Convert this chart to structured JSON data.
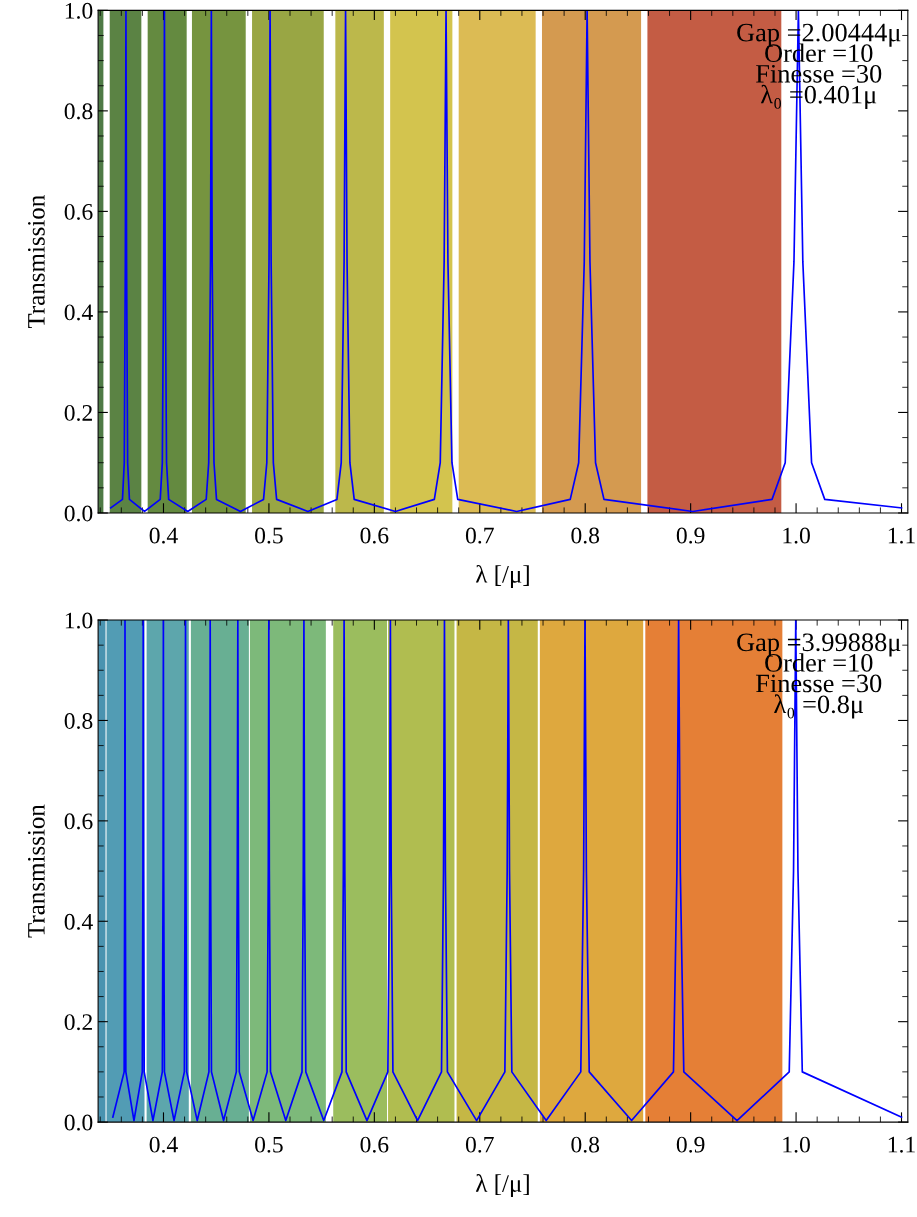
{
  "chart_data": [
    {
      "type": "line",
      "xlabel": "λ [/μ]",
      "ylabel": "Transmission",
      "xlim": [
        0.338,
        1.106
      ],
      "ylim": [
        0,
        1
      ],
      "xticks": [
        {
          "value": 0.4,
          "label": "0.4"
        },
        {
          "value": 0.5,
          "label": "0.5"
        },
        {
          "value": 0.6,
          "label": "0.6"
        },
        {
          "value": 0.7,
          "label": "0.7"
        },
        {
          "value": 0.8,
          "label": "0.8"
        },
        {
          "value": 0.9,
          "label": "0.9"
        },
        {
          "value": 1.0,
          "label": "1.0"
        },
        {
          "value": 1.1,
          "label": "1.1"
        }
      ],
      "yticks": [
        {
          "value": 0,
          "label": "0.0"
        },
        {
          "value": 0.2,
          "label": "0.2"
        },
        {
          "value": 0.4,
          "label": "0.4"
        },
        {
          "value": 0.6,
          "label": "0.6"
        },
        {
          "value": 0.8,
          "label": "0.8"
        },
        {
          "value": 1.0,
          "label": "1.0"
        }
      ],
      "annotations": [
        "Gap =2.00444μ",
        "Order =10",
        "Finesse =30",
        "λ₀ =0.401μ"
      ],
      "bands": [
        {
          "axis": "x",
          "from": 0.338,
          "to": 0.343,
          "color": "#4e7a45"
        },
        {
          "axis": "x",
          "from": 0.349,
          "to": 0.379,
          "color": "#5b8344"
        },
        {
          "axis": "x",
          "from": 0.385,
          "to": 0.422,
          "color": "#648a40"
        },
        {
          "axis": "x",
          "from": 0.427,
          "to": 0.478,
          "color": "#76943f"
        },
        {
          "axis": "x",
          "from": 0.484,
          "to": 0.552,
          "color": "#99a644"
        },
        {
          "axis": "x",
          "from": 0.563,
          "to": 0.609,
          "color": "#bcb84b"
        },
        {
          "axis": "x",
          "from": 0.615,
          "to": 0.674,
          "color": "#d3c44e"
        },
        {
          "axis": "x",
          "from": 0.68,
          "to": 0.753,
          "color": "#dcbb54"
        },
        {
          "axis": "x",
          "from": 0.759,
          "to": 0.853,
          "color": "#d49a50"
        },
        {
          "axis": "x",
          "from": 0.859,
          "to": 0.986,
          "color": "#c45c44"
        }
      ],
      "series": [
        {
          "color": "#0000ff",
          "line_style": "solid",
          "x": [
            0.35,
            0.3611,
            0.3628,
            0.3638,
            0.3644,
            0.365,
            0.366,
            0.3677,
            0.382,
            0.3969,
            0.3989,
            0.4002,
            0.4009,
            0.4016,
            0.4029,
            0.4049,
            0.423,
            0.4405,
            0.4429,
            0.4446,
            0.4454,
            0.4462,
            0.4479,
            0.4503,
            0.473,
            0.4949,
            0.498,
            0.5001,
            0.5011,
            0.5021,
            0.5042,
            0.5073,
            0.537,
            0.5645,
            0.5686,
            0.5713,
            0.5727,
            0.5741,
            0.5768,
            0.5809,
            0.62,
            0.6569,
            0.6625,
            0.6662,
            0.668,
            0.6698,
            0.6736,
            0.6791,
            0.735,
            0.7858,
            0.7938,
            0.7991,
            0.8018,
            0.8045,
            0.8098,
            0.8178,
            0.902,
            0.9772,
            0.9897,
            0.998,
            1.0022,
            1.0064,
            1.0147,
            1.0272,
            1.1
          ],
          "values": [
            0.01,
            0.027,
            0.1,
            0.5,
            1.0,
            0.5,
            0.1,
            0.027,
            0.003,
            0.027,
            0.1,
            0.5,
            1.0,
            0.5,
            0.1,
            0.027,
            0.003,
            0.027,
            0.1,
            0.5,
            1.0,
            0.5,
            0.1,
            0.027,
            0.003,
            0.027,
            0.1,
            0.5,
            1.0,
            0.5,
            0.1,
            0.027,
            0.003,
            0.027,
            0.1,
            0.5,
            1.0,
            0.5,
            0.1,
            0.027,
            0.003,
            0.027,
            0.1,
            0.5,
            1.0,
            0.5,
            0.1,
            0.027,
            0.003,
            0.027,
            0.1,
            0.5,
            1.0,
            0.5,
            0.1,
            0.027,
            0.003,
            0.027,
            0.1,
            0.5,
            1.0,
            0.5,
            0.1,
            0.027,
            0.01
          ]
        }
      ]
    },
    {
      "type": "line",
      "xlabel": "λ [/μ]",
      "ylabel": "Transmission",
      "xlim": [
        0.338,
        1.106
      ],
      "ylim": [
        0,
        1
      ],
      "xticks": [
        {
          "value": 0.4,
          "label": "0.4"
        },
        {
          "value": 0.5,
          "label": "0.5"
        },
        {
          "value": 0.6,
          "label": "0.6"
        },
        {
          "value": 0.7,
          "label": "0.7"
        },
        {
          "value": 0.8,
          "label": "0.8"
        },
        {
          "value": 0.9,
          "label": "0.9"
        },
        {
          "value": 1.0,
          "label": "1.0"
        },
        {
          "value": 1.1,
          "label": "1.1"
        }
      ],
      "yticks": [
        {
          "value": 0,
          "label": "0.0"
        },
        {
          "value": 0.2,
          "label": "0.2"
        },
        {
          "value": 0.4,
          "label": "0.4"
        },
        {
          "value": 0.6,
          "label": "0.6"
        },
        {
          "value": 0.8,
          "label": "0.8"
        },
        {
          "value": 1.0,
          "label": "1.0"
        }
      ],
      "annotations": [
        "Gap =3.99888μ",
        "Order =10",
        "Finesse =30",
        "λ₀ =0.8μ"
      ],
      "bands": [
        {
          "axis": "x",
          "from": 0.338,
          "to": 0.345,
          "color": "#4a93b0"
        },
        {
          "axis": "x",
          "from": 0.346,
          "to": 0.382,
          "color": "#529cb4"
        },
        {
          "axis": "x",
          "from": 0.384,
          "to": 0.424,
          "color": "#5da6ac"
        },
        {
          "axis": "x",
          "from": 0.426,
          "to": 0.481,
          "color": "#68af93"
        },
        {
          "axis": "x",
          "from": 0.482,
          "to": 0.554,
          "color": "#7db97a"
        },
        {
          "axis": "x",
          "from": 0.561,
          "to": 0.612,
          "color": "#9bbd5e"
        },
        {
          "axis": "x",
          "from": 0.613,
          "to": 0.676,
          "color": "#b0bd50"
        },
        {
          "axis": "x",
          "from": 0.678,
          "to": 0.755,
          "color": "#c5b745"
        },
        {
          "axis": "x",
          "from": 0.757,
          "to": 0.855,
          "color": "#dea83e"
        },
        {
          "axis": "x",
          "from": 0.857,
          "to": 0.987,
          "color": "#e57f36"
        }
      ],
      "series": [
        {
          "color": "#0000ff",
          "line_style": "solid",
          "x": [
            0.352,
            0.3627,
            0.3632,
            0.3635,
            0.3638,
            0.3643,
            0.372,
            0.3799,
            0.3805,
            0.3808,
            0.3811,
            0.3817,
            0.39,
            0.3989,
            0.3996,
            0.3999,
            0.4002,
            0.4009,
            0.41,
            0.4198,
            0.4205,
            0.4209,
            0.4213,
            0.422,
            0.432,
            0.4431,
            0.4439,
            0.4443,
            0.4447,
            0.4455,
            0.457,
            0.4691,
            0.47,
            0.4705,
            0.471,
            0.4719,
            0.485,
            0.4983,
            0.4994,
            0.4999,
            0.5004,
            0.5015,
            0.516,
            0.5314,
            0.5326,
            0.5332,
            0.5338,
            0.535,
            0.552,
            0.5693,
            0.5706,
            0.5713,
            0.572,
            0.5733,
            0.593,
            0.6128,
            0.6144,
            0.6152,
            0.616,
            0.6176,
            0.641,
            0.6637,
            0.6656,
            0.6665,
            0.6674,
            0.6693,
            0.697,
            0.7238,
            0.726,
            0.7271,
            0.7282,
            0.7304,
            0.763,
            0.7958,
            0.7985,
            0.7998,
            0.8011,
            0.8038,
            0.844,
            0.8837,
            0.887,
            0.8886,
            0.8902,
            0.8935,
            0.944,
            0.9935,
            0.9976,
            0.9997,
            1.0018,
            1.0059,
            1.1
          ],
          "values": [
            0.01,
            0.1,
            0.5,
            1.0,
            0.5,
            0.1,
            0.003,
            0.1,
            0.5,
            1.0,
            0.5,
            0.1,
            0.003,
            0.1,
            0.5,
            1.0,
            0.5,
            0.1,
            0.003,
            0.1,
            0.5,
            1.0,
            0.5,
            0.1,
            0.003,
            0.1,
            0.5,
            1.0,
            0.5,
            0.1,
            0.003,
            0.1,
            0.5,
            1.0,
            0.5,
            0.1,
            0.003,
            0.1,
            0.5,
            1.0,
            0.5,
            0.1,
            0.003,
            0.1,
            0.5,
            1.0,
            0.5,
            0.1,
            0.003,
            0.1,
            0.5,
            1.0,
            0.5,
            0.1,
            0.003,
            0.1,
            0.5,
            1.0,
            0.5,
            0.1,
            0.003,
            0.1,
            0.5,
            1.0,
            0.5,
            0.1,
            0.003,
            0.1,
            0.5,
            1.0,
            0.5,
            0.1,
            0.003,
            0.1,
            0.5,
            1.0,
            0.5,
            0.1,
            0.003,
            0.1,
            0.5,
            1.0,
            0.5,
            0.1,
            0.003,
            0.1,
            0.5,
            1.0,
            0.5,
            0.1,
            0.01
          ]
        }
      ]
    }
  ]
}
